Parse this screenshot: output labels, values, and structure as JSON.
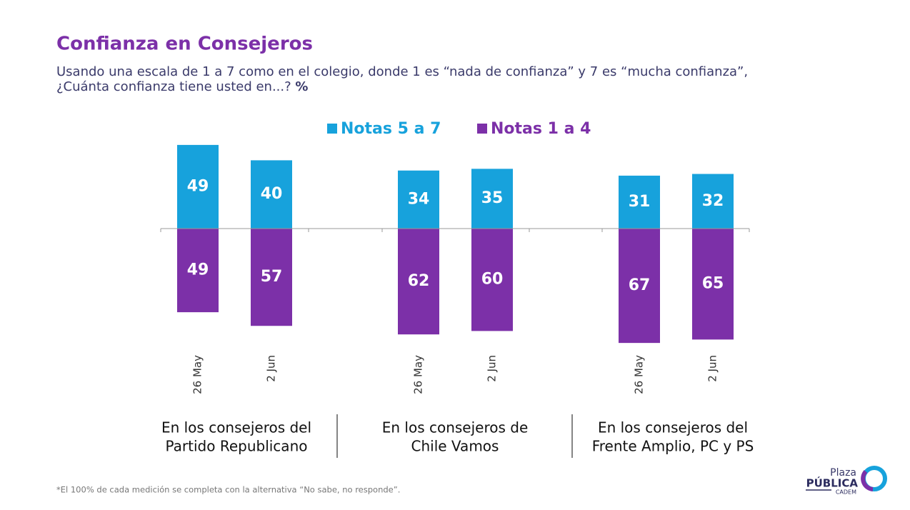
{
  "chart_data": {
    "type": "diverging_bar",
    "title": "Confianza en Consejeros",
    "subtitle": [
      "Usando una escala de 1 a 7 como en el colegio, donde 1 es “nada de confianza” y 7 es “mucha confianza”,",
      "¿Cuánta confianza tiene usted en...?"
    ],
    "unit": "%",
    "categories": [
      "26 May",
      "2 Jun",
      "26 May",
      "2 Jun",
      "26 May",
      "2 Jun"
    ],
    "groups": [
      [
        "En los consejeros del",
        "Partido Republicano"
      ],
      [
        "En los consejeros de",
        "Chile Vamos"
      ],
      [
        "En los consejeros del",
        "Frente Amplio, PC y PS"
      ]
    ],
    "series": [
      {
        "name": "Notas 5 a 7",
        "color": "#17a2dc",
        "values": [
          49,
          40,
          34,
          35,
          31,
          32
        ]
      },
      {
        "name": "Notas 1 a 4",
        "color": "#7c30a8",
        "values": [
          49,
          57,
          62,
          60,
          67,
          65
        ]
      }
    ],
    "footnote": "*El 100% de cada medición se completa con la alternativa “No sabe, no responde”.",
    "logo": [
      "Plaza",
      "PÚBLICA",
      "CADEM"
    ]
  }
}
